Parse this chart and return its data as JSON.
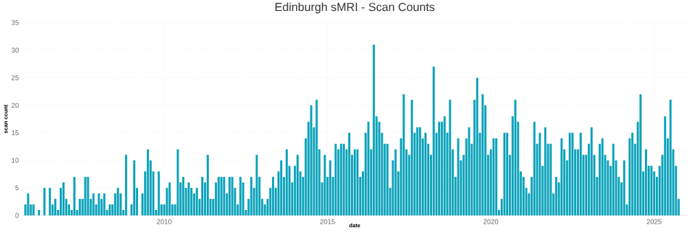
{
  "chart_data": {
    "type": "bar",
    "title": "Edinburgh sMRI - Scan Counts",
    "xlabel": "date",
    "ylabel": "scan count",
    "color": "#0aa2ba",
    "grid": true,
    "x": [
      "2005-10",
      "2005-11",
      "2005-12",
      "2006-01",
      "2006-02",
      "2006-03",
      "2006-04",
      "2006-05",
      "2006-06",
      "2006-07",
      "2006-08",
      "2006-09",
      "2006-10",
      "2006-11",
      "2006-12",
      "2007-01",
      "2007-02",
      "2007-03",
      "2007-04",
      "2007-05",
      "2007-06",
      "2007-07",
      "2007-08",
      "2007-09",
      "2007-10",
      "2007-11",
      "2007-12",
      "2008-01",
      "2008-02",
      "2008-03",
      "2008-04",
      "2008-05",
      "2008-06",
      "2008-07",
      "2008-08",
      "2008-09",
      "2008-10",
      "2008-11",
      "2008-12",
      "2009-01",
      "2009-02",
      "2009-03",
      "2009-04",
      "2009-05",
      "2009-06",
      "2009-07",
      "2009-08",
      "2009-09",
      "2009-10",
      "2009-11",
      "2009-12",
      "2010-01",
      "2010-02",
      "2010-03",
      "2010-04",
      "2010-05",
      "2010-06",
      "2010-07",
      "2010-08",
      "2010-09",
      "2010-10",
      "2010-11",
      "2010-12",
      "2011-01",
      "2011-02",
      "2011-03",
      "2011-04",
      "2011-05",
      "2011-06",
      "2011-07",
      "2011-08",
      "2011-09",
      "2011-10",
      "2011-11",
      "2011-12",
      "2012-01",
      "2012-02",
      "2012-03",
      "2012-04",
      "2012-05",
      "2012-06",
      "2012-07",
      "2012-08",
      "2012-09",
      "2012-10",
      "2012-11",
      "2012-12",
      "2013-01",
      "2013-02",
      "2013-03",
      "2013-04",
      "2013-05",
      "2013-06",
      "2013-07",
      "2013-08",
      "2013-09",
      "2013-10",
      "2013-11",
      "2013-12",
      "2014-01",
      "2014-02",
      "2014-03",
      "2014-04",
      "2014-05",
      "2014-06",
      "2014-07",
      "2014-08",
      "2014-09",
      "2014-10",
      "2014-11",
      "2014-12",
      "2015-01",
      "2015-02",
      "2015-03",
      "2015-04",
      "2015-05",
      "2015-06",
      "2015-07",
      "2015-08",
      "2015-09",
      "2015-10",
      "2015-11",
      "2015-12",
      "2016-01",
      "2016-02",
      "2016-03",
      "2016-04",
      "2016-05",
      "2016-06",
      "2016-07",
      "2016-08",
      "2016-09",
      "2016-10",
      "2016-11",
      "2016-12",
      "2017-01",
      "2017-02",
      "2017-03",
      "2017-04",
      "2017-05",
      "2017-06",
      "2017-07",
      "2017-08",
      "2017-09",
      "2017-10",
      "2017-11",
      "2017-12",
      "2018-01",
      "2018-02",
      "2018-03",
      "2018-04",
      "2018-05",
      "2018-06",
      "2018-07",
      "2018-08",
      "2018-09",
      "2018-10",
      "2018-11",
      "2018-12",
      "2019-01",
      "2019-02",
      "2019-03",
      "2019-04",
      "2019-05",
      "2019-06",
      "2019-07",
      "2019-08",
      "2019-09",
      "2019-10",
      "2019-11",
      "2019-12",
      "2020-01",
      "2020-02",
      "2020-03",
      "2020-04",
      "2020-05",
      "2020-06",
      "2020-07",
      "2020-08",
      "2020-09",
      "2020-10",
      "2020-11",
      "2020-12",
      "2021-01",
      "2021-02",
      "2021-03",
      "2021-04",
      "2021-05",
      "2021-06",
      "2021-07",
      "2021-08",
      "2021-09",
      "2021-10",
      "2021-11",
      "2021-12",
      "2022-01",
      "2022-02",
      "2022-03",
      "2022-04",
      "2022-05",
      "2022-06",
      "2022-07",
      "2022-08",
      "2022-09",
      "2022-10",
      "2022-11",
      "2022-12",
      "2023-01",
      "2023-02",
      "2023-03",
      "2023-04",
      "2023-05",
      "2023-06",
      "2023-07",
      "2023-08",
      "2023-09",
      "2023-10",
      "2023-11",
      "2023-12",
      "2024-01",
      "2024-02",
      "2024-03",
      "2024-04",
      "2024-05",
      "2024-06",
      "2024-07",
      "2024-08",
      "2024-09",
      "2024-10",
      "2024-11",
      "2024-12",
      "2025-01",
      "2025-02",
      "2025-03",
      "2025-04",
      "2025-05",
      "2025-06",
      "2025-07",
      "2025-08",
      "2025-09",
      "2025-10"
    ],
    "values": [
      2,
      4,
      2,
      2,
      null,
      1,
      null,
      5,
      null,
      5,
      2,
      3,
      1,
      5,
      6,
      3,
      2,
      1,
      7,
      1,
      3,
      3,
      7,
      7,
      3,
      4,
      2,
      4,
      3,
      4,
      1,
      2,
      2,
      4,
      5,
      4,
      1,
      11,
      null,
      2,
      10,
      5,
      null,
      4,
      8,
      12,
      10,
      8,
      1,
      8,
      2,
      2,
      5,
      6,
      2,
      2,
      12,
      6,
      7,
      5,
      6,
      5,
      4,
      5,
      3,
      7,
      6,
      11,
      3,
      3,
      6,
      7,
      7,
      7,
      4,
      7,
      7,
      5,
      2,
      7,
      6,
      1,
      3,
      7,
      5,
      11,
      7,
      3,
      2,
      3,
      5,
      7,
      5,
      8,
      10,
      7,
      12,
      9,
      6,
      9,
      11,
      8,
      7,
      14,
      17,
      20,
      16,
      21,
      12,
      6,
      11,
      7,
      10,
      7,
      13,
      12,
      13,
      13,
      12,
      15,
      11,
      12,
      12,
      7,
      8,
      15,
      17,
      12,
      31,
      18,
      17,
      15,
      13,
      13,
      5,
      10,
      12,
      8,
      14,
      22,
      12,
      11,
      21,
      15,
      16,
      16,
      14,
      15,
      13,
      11,
      27,
      15,
      17,
      17,
      18,
      15,
      21,
      12,
      7,
      14,
      10,
      11,
      14,
      16,
      13,
      21,
      25,
      15,
      22,
      20,
      11,
      12,
      14,
      14,
      1,
      3,
      15,
      15,
      11,
      18,
      21,
      17,
      8,
      7,
      5,
      4,
      7,
      17,
      13,
      15,
      9,
      16,
      13,
      13,
      4,
      7,
      6,
      14,
      12,
      10,
      15,
      15,
      12,
      12,
      15,
      11,
      11,
      13,
      16,
      11,
      7,
      13,
      14,
      11,
      10,
      9,
      13,
      10,
      7,
      6,
      10,
      2,
      14,
      15,
      13,
      17,
      22,
      8,
      12,
      9,
      9,
      8,
      7,
      9,
      11,
      18,
      14,
      21,
      12,
      9,
      3
    ],
    "xlim": [
      "2005-09",
      "2026-01"
    ],
    "ylim": [
      0,
      35
    ],
    "xticks": [
      "2010",
      "2015",
      "2020",
      "2025"
    ],
    "yticks": [
      0,
      5,
      10,
      15,
      20,
      25,
      30,
      35
    ]
  }
}
